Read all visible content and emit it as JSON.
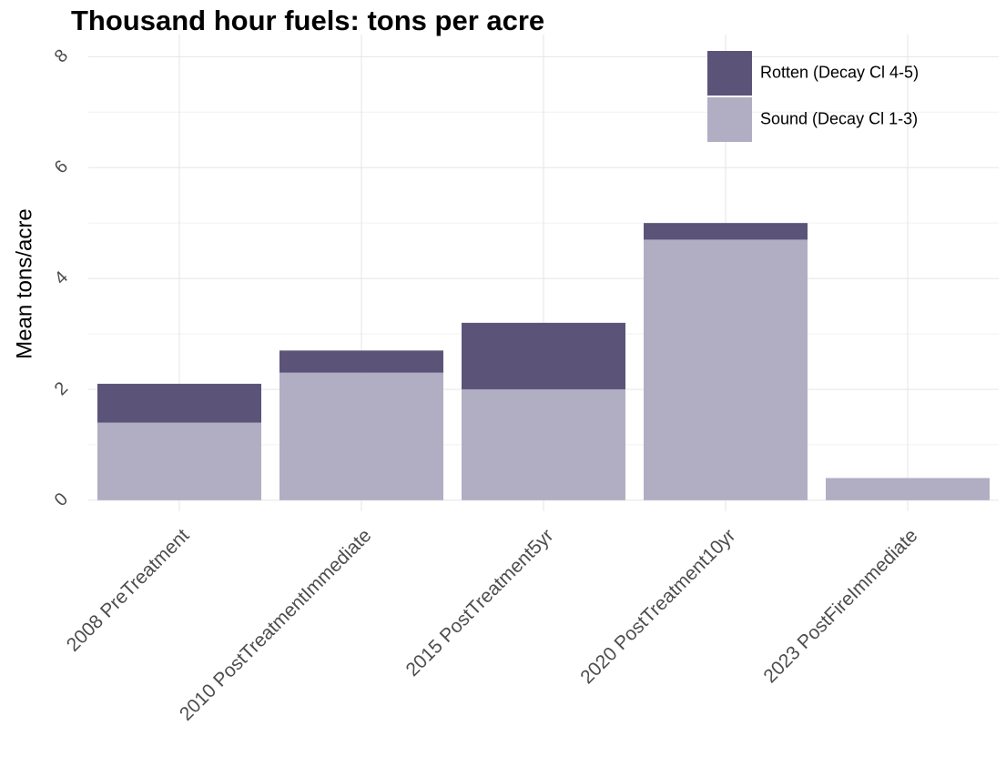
{
  "chart_data": {
    "type": "stacked_bar",
    "title": "Thousand hour fuels: tons per acre",
    "y_label": "Mean tons/acre",
    "categories": [
      "2008 PreTreatment",
      "2010 PostTreatmentImmediate",
      "2015 PostTreatment5yr",
      "2020 PostTreatment10yr",
      "2023 PostFireImmediate"
    ],
    "series": [
      {
        "name": "Rotten (Decay Cl 4-5)",
        "color": "#5b5478",
        "values": [
          0.7,
          0.4,
          1.2,
          0.3,
          0
        ]
      },
      {
        "name": "Sound (Decay Cl 1-3)",
        "color": "#b1aec3",
        "values": [
          1.4,
          2.3,
          2.0,
          4.7,
          0.4
        ]
      }
    ],
    "ylim": [
      -0.2,
      8.4
    ],
    "yticks": [
      0,
      2,
      4,
      6,
      8
    ],
    "grid": true,
    "legend": "top-right"
  }
}
